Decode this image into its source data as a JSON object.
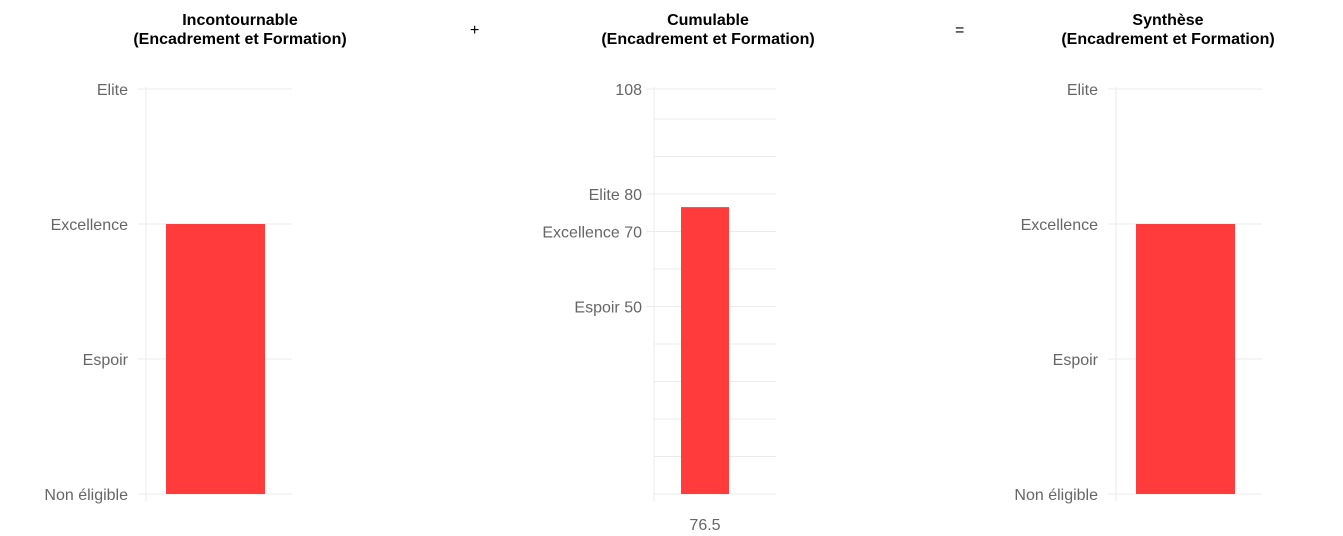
{
  "operators": {
    "plus": "+",
    "equals": "="
  },
  "chart_data": [
    {
      "type": "bar",
      "title": [
        "Incontournable",
        "(Encadrement et Formation)"
      ],
      "y_scale": "categorical-levels",
      "y_levels": [
        "Non éligible",
        "Espoir",
        "Excellence",
        "Elite"
      ],
      "value_level": "Excellence",
      "bar_color": "#ff3b3b",
      "grid": true
    },
    {
      "type": "bar",
      "title": [
        "Cumulable",
        "(Encadrement et Formation)"
      ],
      "ylim": [
        0,
        108
      ],
      "y_ticks": [
        {
          "value": 108,
          "label": "108"
        },
        {
          "value": 80,
          "label": "Elite  80"
        },
        {
          "value": 70,
          "label": "Excellence  70"
        },
        {
          "value": 50,
          "label": "Espoir  50"
        }
      ],
      "values": [
        76.5
      ],
      "x_tick_labels": [
        "76.5"
      ],
      "bar_color": "#ff3b3b",
      "grid": true
    },
    {
      "type": "bar",
      "title": [
        "Synthèse",
        "(Encadrement et Formation)"
      ],
      "y_scale": "categorical-levels",
      "y_levels": [
        "Non éligible",
        "Espoir",
        "Excellence",
        "Elite"
      ],
      "value_level": "Excellence",
      "bar_color": "#ff3b3b",
      "grid": true
    }
  ]
}
